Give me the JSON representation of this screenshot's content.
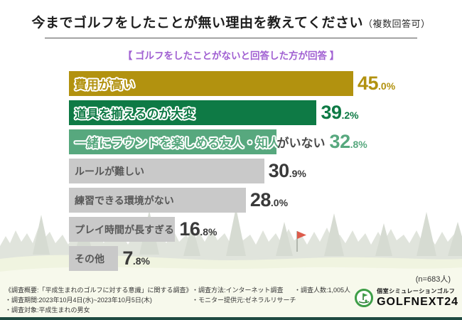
{
  "header": {
    "title": "今までゴルフをしたことが無い理由を教えてください",
    "title_note": "（複数回答可）",
    "subtitle": "【 ゴルフをしたことがないと回答した方が回答 】",
    "subtitle_color": "#a05fd2"
  },
  "chart_data": {
    "type": "bar",
    "orientation": "horizontal",
    "unit": "%",
    "scale_max": 45,
    "categories": [
      "費用が高い",
      "道具を揃えるのが大変",
      "一緒にラウンドを楽しめる友人・知人がいない",
      "ルールが難しい",
      "練習できる環境がない",
      "プレイ時間が長すぎる",
      "その他"
    ],
    "values": [
      45.0,
      39.2,
      32.8,
      30.9,
      28.0,
      16.8,
      7.8
    ],
    "rows": [
      {
        "label": "費用が高い",
        "label_outside": "",
        "value": 45.0,
        "value_int": "45",
        "value_frac": ".0%",
        "bar_color": "#b2920f",
        "value_color": "#b2920f",
        "label_style": "outline"
      },
      {
        "label": "道具を揃えるのが大変",
        "label_outside": "",
        "value": 39.2,
        "value_int": "39",
        "value_frac": ".2%",
        "bar_color": "#0e7a45",
        "value_color": "#0e7a45",
        "label_style": "outline"
      },
      {
        "label": "一緒にラウンドを楽しめる友人・知人",
        "label_outside": "がいない",
        "value": 32.8,
        "value_int": "32",
        "value_frac": ".8%",
        "bar_color": "#57a87e",
        "value_color": "#57a87e",
        "label_style": "outline"
      },
      {
        "label": "ルールが難しい",
        "label_outside": "",
        "value": 30.9,
        "value_int": "30",
        "value_frac": ".9%",
        "bar_color": "#c9c9c9",
        "value_color": "#3a3a3a",
        "label_style": "plain"
      },
      {
        "label": "練習できる環境がない",
        "label_outside": "",
        "value": 28.0,
        "value_int": "28",
        "value_frac": ".0%",
        "bar_color": "#c9c9c9",
        "value_color": "#3a3a3a",
        "label_style": "plain"
      },
      {
        "label": "プレイ時間が長すぎる",
        "label_outside": "",
        "value": 16.8,
        "value_int": "16",
        "value_frac": ".8%",
        "bar_color": "#c9c9c9",
        "value_color": "#3a3a3a",
        "label_style": "plain"
      },
      {
        "label": "その他",
        "label_outside": "",
        "value": 7.8,
        "value_int": "7",
        "value_frac": ".8%",
        "bar_color": "#c9c9c9",
        "value_color": "#3a3a3a",
        "label_style": "plain"
      }
    ],
    "sample_note": "(n=683人)"
  },
  "footer": {
    "survey_overview": "《調査概要:「平成生まれのゴルフに対する意識」に関する調査》",
    "survey_period": "・調査期間:2023年10月4日(水)~2023年10月5日(木)",
    "survey_target": "・調査対象:平成生まれの男女",
    "survey_method": "・調査方法:インターネット調査",
    "survey_monitor": "・モニター提供元:ゼネラルリサーチ",
    "survey_count": "・調査人数:1,005人"
  },
  "logo": {
    "tagline": "個室シミュレーションゴルフ",
    "name": "GOLFNEXT24",
    "brand_color": "#3e9e47"
  },
  "colors": {
    "bottom_bar": "#1f4a41",
    "flag_red": "#dd5b4b"
  }
}
